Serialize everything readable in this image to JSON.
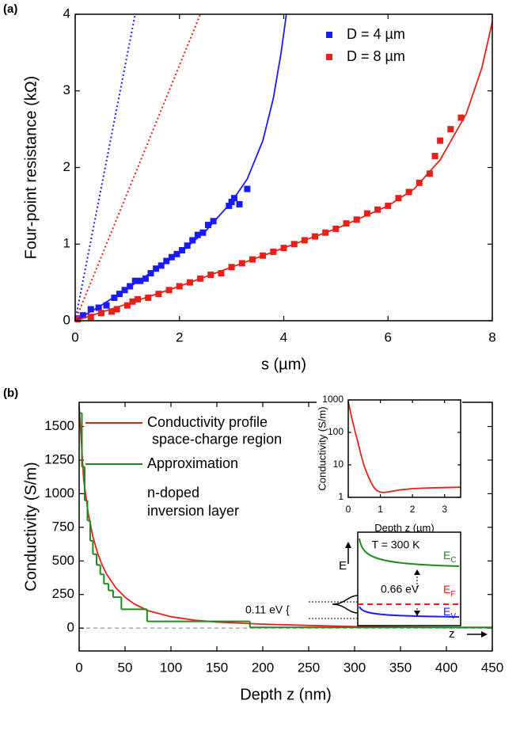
{
  "panel_labels": [
    "(a)",
    "(b)"
  ],
  "chart_data": [
    {
      "type": "scatter",
      "xlabel": "s (µm)",
      "ylabel": "Four-point resistance (kΩ)",
      "xlim": [
        0,
        8
      ],
      "ylim": [
        0,
        4
      ],
      "xticks": [
        0,
        2,
        4,
        6,
        8
      ],
      "yticks": [
        0,
        1,
        2,
        3,
        4
      ],
      "legend": "upper right",
      "series": [
        {
          "name": "D = 4 µm",
          "color": "#1a1aff",
          "mode": "markers",
          "x": [
            0.05,
            0.15,
            0.3,
            0.45,
            0.6,
            0.75,
            0.85,
            0.95,
            1.05,
            1.15,
            1.25,
            1.35,
            1.45,
            1.55,
            1.65,
            1.75,
            1.85,
            1.95,
            2.05,
            2.15,
            2.25,
            2.35,
            2.45,
            2.55,
            2.65,
            2.95,
            3.0,
            3.05,
            3.15,
            3.3
          ],
          "values": [
            0.03,
            0.07,
            0.15,
            0.17,
            0.2,
            0.3,
            0.35,
            0.4,
            0.45,
            0.52,
            0.52,
            0.55,
            0.62,
            0.68,
            0.72,
            0.78,
            0.83,
            0.87,
            0.92,
            0.98,
            1.05,
            1.12,
            1.15,
            1.25,
            1.3,
            1.5,
            1.55,
            1.6,
            1.52,
            1.72
          ]
        },
        {
          "name": "D = 8 µm",
          "color": "#e8201a",
          "mode": "markers",
          "x": [
            0.05,
            0.3,
            0.5,
            0.7,
            0.8,
            1.0,
            1.1,
            1.2,
            1.4,
            1.6,
            1.8,
            2.0,
            2.2,
            2.4,
            2.6,
            2.8,
            3.0,
            3.2,
            3.4,
            3.6,
            3.8,
            4.0,
            4.2,
            4.4,
            4.6,
            4.8,
            5.0,
            5.2,
            5.4,
            5.6,
            5.8,
            6.0,
            6.2,
            6.4,
            6.6,
            6.8,
            6.9,
            7.0,
            7.2,
            7.4
          ],
          "values": [
            0.02,
            0.05,
            0.1,
            0.12,
            0.15,
            0.2,
            0.25,
            0.28,
            0.3,
            0.35,
            0.4,
            0.45,
            0.5,
            0.55,
            0.6,
            0.62,
            0.7,
            0.75,
            0.8,
            0.85,
            0.9,
            0.95,
            1.0,
            1.05,
            1.1,
            1.15,
            1.2,
            1.27,
            1.32,
            1.4,
            1.45,
            1.5,
            1.6,
            1.68,
            1.8,
            1.92,
            2.15,
            2.35,
            2.5,
            2.65
          ]
        },
        {
          "color": "#1a1aff",
          "mode": "line",
          "x": [
            0,
            0.5,
            1,
            1.5,
            2,
            2.5,
            3,
            3.3,
            3.6,
            3.8,
            3.95,
            4.05
          ],
          "values": [
            0,
            0.2,
            0.42,
            0.65,
            0.88,
            1.17,
            1.55,
            1.85,
            2.35,
            2.9,
            3.5,
            4
          ]
        },
        {
          "color": "#e8201a",
          "mode": "line",
          "x": [
            0,
            1,
            2,
            3,
            4,
            5,
            6,
            6.5,
            7,
            7.5,
            7.8,
            8
          ],
          "values": [
            0,
            0.22,
            0.45,
            0.7,
            0.95,
            1.2,
            1.5,
            1.72,
            2.1,
            2.7,
            3.3,
            3.9
          ]
        },
        {
          "color": "#1a1aff",
          "mode": "dotted",
          "x": [
            0,
            1.15
          ],
          "values": [
            0,
            4
          ]
        },
        {
          "color": "#e8201a",
          "mode": "dotted",
          "x": [
            0,
            2.4
          ],
          "values": [
            0,
            4
          ]
        }
      ]
    },
    {
      "type": "line",
      "xlabel": "Depth z (nm)",
      "ylabel": "Conductivity (S/m)",
      "xlim": [
        0,
        450
      ],
      "ylim": [
        -170,
        1680
      ],
      "xticks": [
        0,
        50,
        100,
        150,
        200,
        250,
        300,
        350,
        400,
        450
      ],
      "yticks": [
        0,
        250,
        500,
        750,
        1000,
        1250,
        1500
      ],
      "legend": "upper left",
      "zero_line": true,
      "annotations": [
        "n-doped",
        "inversion layer"
      ],
      "annotation_color": "#e8201a",
      "series": [
        {
          "name": "Conductivity profile\nspace-charge region",
          "color": "#e8201a",
          "mode": "line",
          "x": [
            0,
            5,
            10,
            15,
            20,
            25,
            30,
            40,
            50,
            60,
            75,
            100,
            125,
            150,
            200,
            250,
            300,
            350,
            400,
            450
          ],
          "values": [
            1650,
            1100,
            850,
            680,
            560,
            470,
            400,
            300,
            230,
            180,
            130,
            85,
            60,
            45,
            30,
            20,
            12,
            8,
            5,
            3
          ]
        },
        {
          "name": "Approximation",
          "color": "#1e8a1e",
          "mode": "step",
          "x": [
            0,
            3,
            6,
            9,
            12,
            15,
            19,
            23,
            27,
            32,
            37,
            46,
            74,
            186
          ],
          "values": [
            1600,
            1200,
            950,
            800,
            650,
            550,
            470,
            400,
            330,
            280,
            230,
            140,
            50,
            5
          ]
        }
      ]
    },
    {
      "type": "line",
      "xlabel": "Depth z (µm)",
      "ylabel": "Conductivity (S/m)",
      "xlim": [
        0,
        3.5
      ],
      "ylim": [
        1,
        1000
      ],
      "log_y": true,
      "xticks": [
        0,
        1,
        2,
        3
      ],
      "yticks": [
        1,
        10,
        100,
        1000
      ],
      "series": [
        {
          "color": "#e8201a",
          "mode": "line",
          "x": [
            0,
            0.1,
            0.2,
            0.3,
            0.4,
            0.5,
            0.6,
            0.7,
            0.8,
            0.9,
            1.0,
            1.1,
            1.3,
            1.6,
            2,
            2.5,
            3,
            3.5
          ],
          "values": [
            900,
            300,
            120,
            50,
            20,
            9,
            5,
            3,
            2,
            1.6,
            1.45,
            1.4,
            1.5,
            1.7,
            1.85,
            1.95,
            2,
            2.05
          ]
        }
      ]
    }
  ],
  "band_diagram": {
    "energy_axis": "E",
    "temperature": "T = 300 K",
    "gap": "0.66 eV",
    "width": "0.11 eV {",
    "depth_axis": "z",
    "conduction": {
      "main": "E",
      "sub": "C"
    },
    "fermi": {
      "main": "E",
      "sub": "F"
    },
    "valence": {
      "main": "E",
      "sub": "V"
    }
  }
}
